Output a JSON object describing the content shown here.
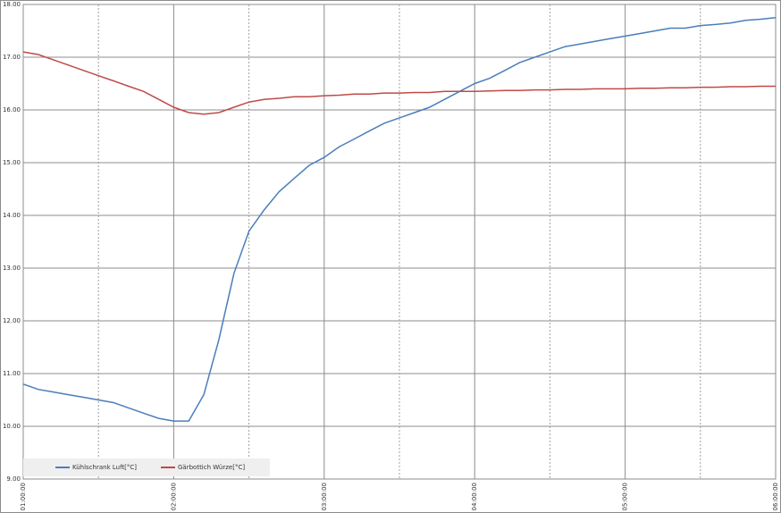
{
  "chart_data": {
    "type": "line",
    "x": [
      1.0,
      1.1,
      1.2,
      1.3,
      1.4,
      1.5,
      1.6,
      1.7,
      1.8,
      1.9,
      2.0,
      2.1,
      2.2,
      2.3,
      2.4,
      2.5,
      2.6,
      2.7,
      2.8,
      2.9,
      3.0,
      3.1,
      3.2,
      3.3,
      3.4,
      3.5,
      3.6,
      3.7,
      3.8,
      3.9,
      4.0,
      4.1,
      4.2,
      4.3,
      4.4,
      4.5,
      4.6,
      4.7,
      4.8,
      4.9,
      5.0,
      5.1,
      5.2,
      5.3,
      5.4,
      5.5,
      5.6,
      5.7,
      5.8,
      5.9,
      6.0
    ],
    "series": [
      {
        "name": "Kühlschrank Luft[°C]",
        "color": "#4a7ebb",
        "values": [
          10.8,
          10.7,
          10.65,
          10.6,
          10.55,
          10.5,
          10.45,
          10.35,
          10.25,
          10.15,
          10.1,
          10.1,
          10.6,
          11.64,
          12.9,
          13.7,
          14.1,
          14.45,
          14.7,
          14.95,
          15.1,
          15.3,
          15.45,
          15.6,
          15.75,
          15.85,
          15.95,
          16.05,
          16.2,
          16.35,
          16.5,
          16.6,
          16.75,
          16.9,
          17.0,
          17.1,
          17.2,
          17.25,
          17.3,
          17.35,
          17.4,
          17.45,
          17.5,
          17.55,
          17.55,
          17.6,
          17.62,
          17.65,
          17.7,
          17.72,
          17.75
        ]
      },
      {
        "name": "Gärbottich Würze[°C]",
        "color": "#be4b48",
        "values": [
          17.1,
          17.05,
          16.95,
          16.85,
          16.75,
          16.65,
          16.55,
          16.45,
          16.35,
          16.2,
          16.05,
          15.95,
          15.92,
          15.95,
          16.05,
          16.15,
          16.2,
          16.22,
          16.25,
          16.25,
          16.27,
          16.28,
          16.3,
          16.3,
          16.32,
          16.32,
          16.33,
          16.33,
          16.35,
          16.35,
          16.35,
          16.36,
          16.37,
          16.37,
          16.38,
          16.38,
          16.39,
          16.39,
          16.4,
          16.4,
          16.4,
          16.41,
          16.41,
          16.42,
          16.42,
          16.43,
          16.43,
          16.44,
          16.44,
          16.45,
          16.45
        ]
      }
    ],
    "xlim": [
      1,
      6
    ],
    "xticks": [
      {
        "value": 1,
        "label": "01:00:00"
      },
      {
        "value": 2,
        "label": "02:00:00"
      },
      {
        "value": 3,
        "label": "03:00:00"
      },
      {
        "value": 4,
        "label": "04:00:00"
      },
      {
        "value": 5,
        "label": "05:00:00"
      },
      {
        "value": 6,
        "label": "06:00:00"
      }
    ],
    "xminorticks": [
      1.5,
      2.5,
      3.5,
      4.5,
      5.5
    ],
    "ylim": [
      9,
      18
    ],
    "yticks": [
      {
        "value": 9,
        "label": "9.00"
      },
      {
        "value": 10,
        "label": "10.00"
      },
      {
        "value": 11,
        "label": "11.00"
      },
      {
        "value": 12,
        "label": "12.00"
      },
      {
        "value": 13,
        "label": "13.00"
      },
      {
        "value": 14,
        "label": "14.00"
      },
      {
        "value": 15,
        "label": "15.00"
      },
      {
        "value": 16,
        "label": "16.00"
      },
      {
        "value": 17,
        "label": "17.00"
      },
      {
        "value": 18,
        "label": "18.00"
      }
    ],
    "grid": true,
    "legend": "lower left"
  }
}
